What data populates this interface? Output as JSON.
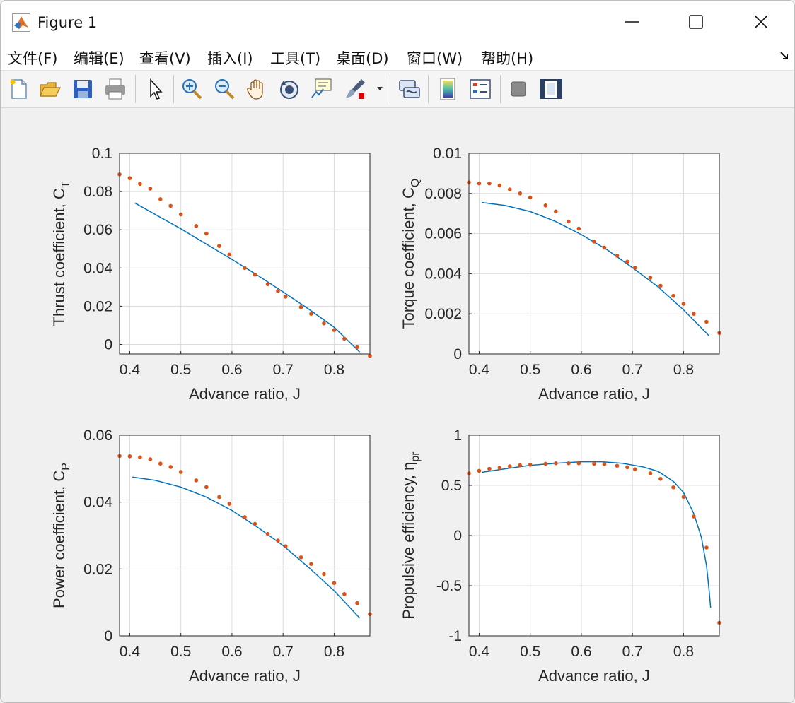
{
  "window": {
    "title": "Figure 1"
  },
  "menu": {
    "items": [
      "文件(F)",
      "编辑(E)",
      "查看(V)",
      "插入(I)",
      "工具(T)",
      "桌面(D)",
      "窗口(W)",
      "帮助(H)"
    ]
  },
  "toolbar": {
    "icons": [
      "new-figure-icon",
      "open-file-icon",
      "save-icon",
      "print-icon",
      "pointer-icon",
      "zoom-in-icon",
      "zoom-out-icon",
      "pan-hand-icon",
      "rotate-3d-icon",
      "data-cursor-icon",
      "brush-icon",
      "link-plot-icon",
      "colorbar-icon",
      "legend-icon",
      "hide-plot-tools-icon",
      "show-plot-tools-icon"
    ]
  },
  "colors": {
    "line": "#0072BD",
    "markers": "#D95319",
    "grid": "#dcdcdc",
    "axes": "#262626"
  },
  "chart_data": [
    {
      "type": "line+scatter",
      "xlabel": "Advance ratio, J",
      "ylabel": "Thrust coefficient, C",
      "ylabel_sub": "T",
      "xlim": [
        0.38,
        0.87
      ],
      "ylim": [
        -0.005,
        0.1
      ],
      "xticks": [
        "0.4",
        "0.5",
        "0.6",
        "0.7",
        "0.8"
      ],
      "yticks": [
        "0",
        "0.02",
        "0.04",
        "0.06",
        "0.08",
        "0.1"
      ],
      "grid": true,
      "line": {
        "x": [
          0.41,
          0.45,
          0.5,
          0.55,
          0.6,
          0.65,
          0.7,
          0.75,
          0.8,
          0.85
        ],
        "y": [
          0.074,
          0.068,
          0.0605,
          0.0525,
          0.0445,
          0.0362,
          0.0275,
          0.0185,
          0.009,
          -0.004
        ]
      },
      "markers": {
        "x": [
          0.38,
          0.4,
          0.42,
          0.44,
          0.46,
          0.48,
          0.5,
          0.53,
          0.55,
          0.575,
          0.595,
          0.625,
          0.645,
          0.67,
          0.69,
          0.705,
          0.735,
          0.755,
          0.78,
          0.8,
          0.82,
          0.845,
          0.87
        ],
        "y": [
          0.089,
          0.087,
          0.084,
          0.0815,
          0.076,
          0.0725,
          0.068,
          0.062,
          0.058,
          0.0515,
          0.047,
          0.04,
          0.0365,
          0.0315,
          0.028,
          0.025,
          0.0195,
          0.016,
          0.011,
          0.0075,
          0.003,
          -0.0015,
          -0.006
        ]
      }
    },
    {
      "type": "line+scatter",
      "xlabel": "Advance ratio, J",
      "ylabel": "Torque coefficient, C",
      "ylabel_sub": "Q",
      "xlim": [
        0.38,
        0.87
      ],
      "ylim": [
        0,
        0.01
      ],
      "xticks": [
        "0.4",
        "0.5",
        "0.6",
        "0.7",
        "0.8"
      ],
      "yticks": [
        "0",
        "0.002",
        "0.004",
        "0.006",
        "0.008",
        "0.01"
      ],
      "grid": true,
      "line": {
        "x": [
          0.405,
          0.45,
          0.5,
          0.55,
          0.6,
          0.65,
          0.7,
          0.75,
          0.8,
          0.85
        ],
        "y": [
          0.00755,
          0.0074,
          0.0071,
          0.0066,
          0.00595,
          0.0052,
          0.0043,
          0.00335,
          0.0022,
          0.0009
        ]
      },
      "markers": {
        "x": [
          0.38,
          0.4,
          0.42,
          0.44,
          0.46,
          0.48,
          0.5,
          0.53,
          0.55,
          0.575,
          0.595,
          0.625,
          0.645,
          0.67,
          0.69,
          0.705,
          0.735,
          0.755,
          0.78,
          0.8,
          0.82,
          0.845,
          0.87
        ],
        "y": [
          0.00855,
          0.0085,
          0.0085,
          0.0084,
          0.0082,
          0.008,
          0.0078,
          0.0074,
          0.0071,
          0.0066,
          0.00625,
          0.0056,
          0.0053,
          0.0049,
          0.0046,
          0.0043,
          0.0038,
          0.0034,
          0.0029,
          0.0025,
          0.002,
          0.0016,
          0.00105
        ]
      }
    },
    {
      "type": "line+scatter",
      "xlabel": "Advance ratio, J",
      "ylabel": "Power coefficient, C",
      "ylabel_sub": "P",
      "xlim": [
        0.38,
        0.87
      ],
      "ylim": [
        0,
        0.06
      ],
      "xticks": [
        "0.4",
        "0.5",
        "0.6",
        "0.7",
        "0.8"
      ],
      "yticks": [
        "0",
        "0.02",
        "0.04",
        "0.06"
      ],
      "grid": true,
      "line": {
        "x": [
          0.405,
          0.45,
          0.5,
          0.55,
          0.6,
          0.65,
          0.7,
          0.75,
          0.8,
          0.85
        ],
        "y": [
          0.0475,
          0.0465,
          0.0445,
          0.0415,
          0.0375,
          0.0325,
          0.027,
          0.0205,
          0.0135,
          0.0053
        ]
      },
      "markers": {
        "x": [
          0.38,
          0.4,
          0.42,
          0.44,
          0.46,
          0.48,
          0.5,
          0.53,
          0.55,
          0.575,
          0.595,
          0.625,
          0.645,
          0.67,
          0.69,
          0.705,
          0.735,
          0.755,
          0.78,
          0.8,
          0.82,
          0.845,
          0.87
        ],
        "y": [
          0.0538,
          0.0537,
          0.0534,
          0.0528,
          0.0515,
          0.0505,
          0.049,
          0.0465,
          0.0445,
          0.0415,
          0.0395,
          0.0355,
          0.0335,
          0.0305,
          0.0285,
          0.0268,
          0.0235,
          0.0215,
          0.0185,
          0.0158,
          0.0125,
          0.0098,
          0.0065
        ]
      }
    },
    {
      "type": "line+scatter",
      "xlabel": "Advance ratio, J",
      "ylabel": "Propulsive efficiency, η",
      "ylabel_sub": "pr",
      "xlim": [
        0.38,
        0.87
      ],
      "ylim": [
        -1,
        1
      ],
      "xticks": [
        "0.4",
        "0.5",
        "0.6",
        "0.7",
        "0.8"
      ],
      "yticks": [
        "-1",
        "-0.5",
        "0",
        "0.5",
        "1"
      ],
      "grid": true,
      "line": {
        "x": [
          0.405,
          0.45,
          0.5,
          0.55,
          0.6,
          0.64,
          0.68,
          0.72,
          0.75,
          0.78,
          0.8,
          0.82,
          0.835,
          0.845,
          0.85,
          0.853
        ],
        "y": [
          0.63,
          0.665,
          0.7,
          0.72,
          0.735,
          0.735,
          0.72,
          0.685,
          0.64,
          0.54,
          0.43,
          0.22,
          -0.02,
          -0.3,
          -0.55,
          -0.72
        ]
      },
      "markers": {
        "x": [
          0.38,
          0.4,
          0.42,
          0.44,
          0.46,
          0.48,
          0.5,
          0.53,
          0.55,
          0.575,
          0.595,
          0.625,
          0.645,
          0.67,
          0.69,
          0.705,
          0.735,
          0.755,
          0.78,
          0.8,
          0.82,
          0.845,
          0.87
        ],
        "y": [
          0.62,
          0.645,
          0.665,
          0.675,
          0.69,
          0.7,
          0.705,
          0.715,
          0.72,
          0.72,
          0.72,
          0.715,
          0.71,
          0.695,
          0.68,
          0.66,
          0.62,
          0.565,
          0.48,
          0.385,
          0.19,
          -0.12,
          -0.87
        ]
      }
    }
  ]
}
